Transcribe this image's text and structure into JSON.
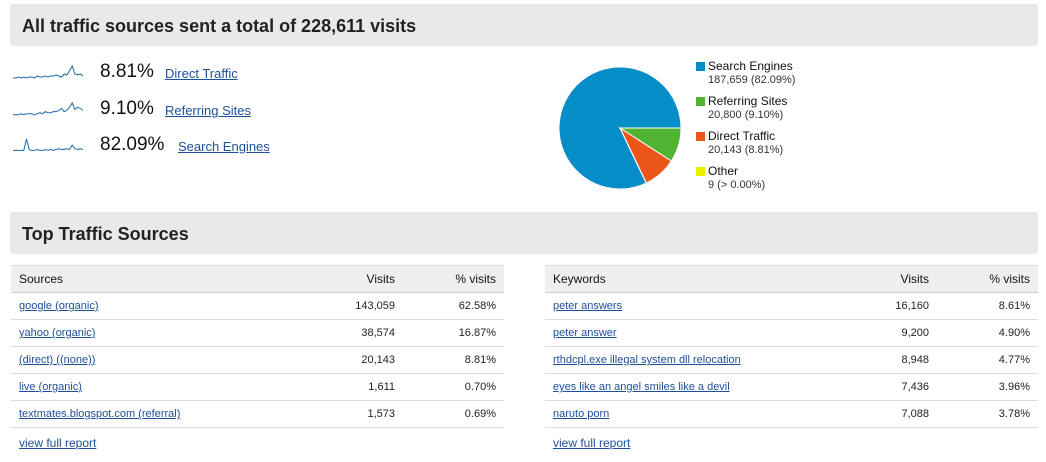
{
  "header": {
    "title": "All traffic sources sent a total of 228,611 visits"
  },
  "sources_summary": [
    {
      "percent": "8.81%",
      "label": "Direct Traffic",
      "sparkline": [
        2,
        2,
        3,
        2,
        3,
        2,
        3,
        3,
        2,
        4,
        3,
        3,
        4,
        3,
        4,
        4,
        5,
        4,
        3,
        6,
        5,
        9,
        14,
        6,
        5,
        6,
        4
      ]
    },
    {
      "percent": "9.10%",
      "label": "Referring Sites",
      "sparkline": [
        2,
        2,
        2,
        3,
        2,
        3,
        3,
        3,
        2,
        3,
        4,
        3,
        5,
        4,
        4,
        5,
        5,
        6,
        8,
        5,
        6,
        9,
        13,
        7,
        9,
        8,
        6
      ]
    },
    {
      "percent": "82.09%",
      "label": "Search Engines",
      "sparkline": [
        3,
        3,
        3,
        3,
        3,
        16,
        4,
        3,
        3,
        4,
        3,
        3,
        4,
        3,
        4,
        3,
        4,
        5,
        4,
        4,
        5,
        4,
        9,
        5,
        4,
        5,
        4
      ]
    }
  ],
  "chart_data": {
    "type": "pie",
    "slices": [
      {
        "name": "Search Engines",
        "value": 187659,
        "label": "187,659 (82.09%)",
        "color": "#058dc7"
      },
      {
        "name": "Referring Sites",
        "value": 20800,
        "label": "20,800 (9.10%)",
        "color": "#50b432"
      },
      {
        "name": "Direct Traffic",
        "value": 20143,
        "label": "20,143 (8.81%)",
        "color": "#ed561b"
      },
      {
        "name": "Other",
        "value": 9,
        "label": "9 (> 0.00%)",
        "color": "#edef00"
      }
    ],
    "legend": "right"
  },
  "top": {
    "title": "Top Traffic Sources"
  },
  "sources_table": {
    "headers": [
      "Sources",
      "Visits",
      "% visits"
    ],
    "rows": [
      [
        "google (organic)",
        "143,059",
        "62.58%"
      ],
      [
        "yahoo (organic)",
        "38,574",
        "16.87%"
      ],
      [
        "(direct) ((none))",
        "20,143",
        "8.81%"
      ],
      [
        "live (organic)",
        "1,611",
        "0.70%"
      ],
      [
        "textmates.blogspot.com (referral)",
        "1,573",
        "0.69%"
      ]
    ],
    "full_report": "view full report"
  },
  "keywords_table": {
    "headers": [
      "Keywords",
      "Visits",
      "% visits"
    ],
    "rows": [
      [
        "peter answers",
        "16,160",
        "8.61%"
      ],
      [
        "peter answer",
        "9,200",
        "4.90%"
      ],
      [
        "rthdcpl.exe illegal system dll relocation",
        "8,948",
        "4.77%"
      ],
      [
        "eyes like an angel smiles like a devil",
        "7,436",
        "3.96%"
      ],
      [
        "naruto porn",
        "7,088",
        "3.78%"
      ]
    ],
    "full_report": "view full report"
  },
  "colors": {
    "sparkline": "#1e6aa8",
    "link": "#1f4f9a",
    "band": "#e9e9e9"
  }
}
